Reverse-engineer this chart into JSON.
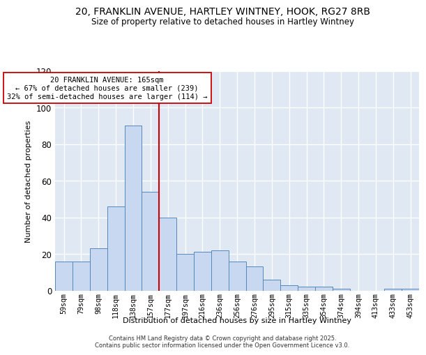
{
  "title_line1": "20, FRANKLIN AVENUE, HARTLEY WINTNEY, HOOK, RG27 8RB",
  "title_line2": "Size of property relative to detached houses in Hartley Wintney",
  "xlabel": "Distribution of detached houses by size in Hartley Wintney",
  "ylabel": "Number of detached properties",
  "categories": [
    "59sqm",
    "79sqm",
    "98sqm",
    "118sqm",
    "138sqm",
    "157sqm",
    "177sqm",
    "197sqm",
    "216sqm",
    "236sqm",
    "256sqm",
    "276sqm",
    "295sqm",
    "315sqm",
    "335sqm",
    "354sqm",
    "374sqm",
    "394sqm",
    "413sqm",
    "433sqm",
    "453sqm"
  ],
  "values": [
    16,
    16,
    23,
    46,
    90,
    54,
    40,
    20,
    21,
    22,
    16,
    13,
    6,
    3,
    2,
    2,
    1,
    0,
    0,
    1,
    1
  ],
  "bar_color": "#c8d8f0",
  "bar_edge_color": "#5588bb",
  "vline_x_idx": 5.5,
  "vline_color": "#cc0000",
  "annotation_text": "20 FRANKLIN AVENUE: 165sqm\n← 67% of detached houses are smaller (239)\n32% of semi-detached houses are larger (114) →",
  "annotation_box_color": "white",
  "annotation_box_edge": "#cc0000",
  "ylim": [
    0,
    120
  ],
  "yticks": [
    0,
    20,
    40,
    60,
    80,
    100,
    120
  ],
  "background_color": "#e0e8f4",
  "grid_color": "white",
  "footer_line1": "Contains HM Land Registry data © Crown copyright and database right 2025.",
  "footer_line2": "Contains public sector information licensed under the Open Government Licence v3.0."
}
